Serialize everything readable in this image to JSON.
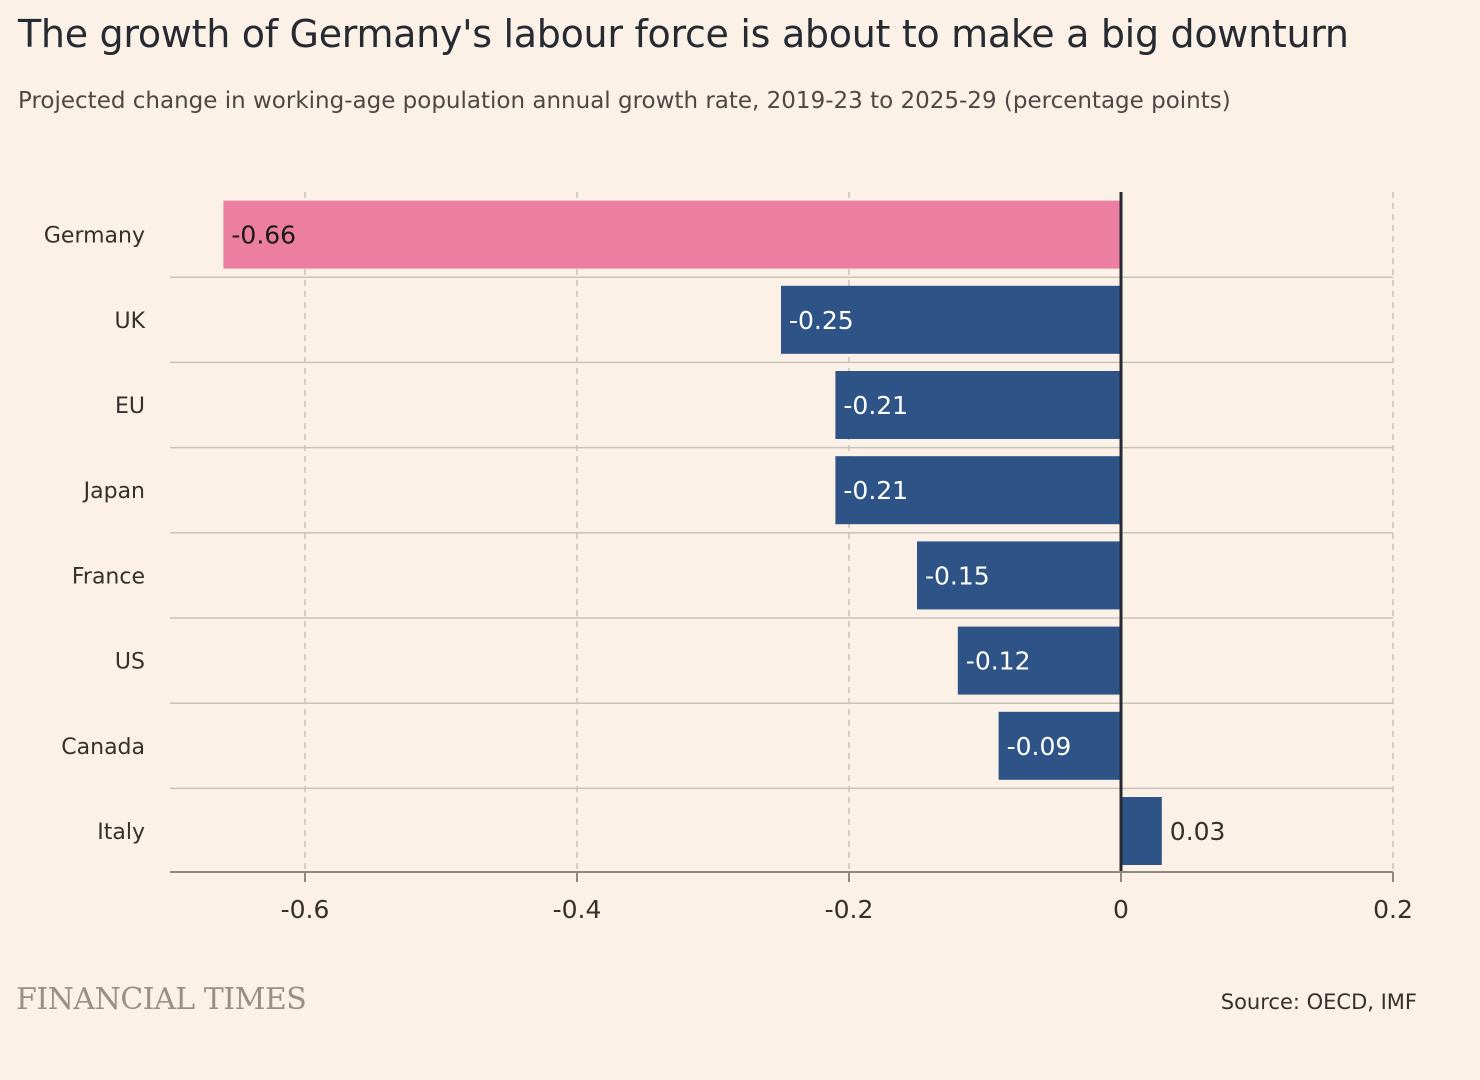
{
  "chart_data": {
    "type": "bar",
    "orientation": "horizontal",
    "title": "The growth of Germany's labour force is about to make a big downturn",
    "subtitle": "Projected change in working-age population annual growth rate, 2019-23 to 2025-29 (percentage points)",
    "categories": [
      "Germany",
      "UK",
      "EU",
      "Japan",
      "France",
      "US",
      "Canada",
      "Italy"
    ],
    "values": [
      -0.66,
      -0.25,
      -0.21,
      -0.21,
      -0.15,
      -0.12,
      -0.09,
      0.03
    ],
    "value_labels": [
      "-0.66",
      "-0.25",
      "-0.21",
      "-0.21",
      "-0.15",
      "-0.12",
      "-0.09",
      "0.03"
    ],
    "highlight_category": "Germany",
    "xlim": [
      -0.7,
      0.2
    ],
    "xticks": [
      -0.6,
      -0.4,
      -0.2,
      0,
      0.2
    ],
    "xtick_labels": [
      "-0.6",
      "-0.4",
      "-0.2",
      "0",
      "0.2"
    ],
    "grid": true,
    "colors": {
      "highlight": "#ec7ea2",
      "bar": "#2e5387",
      "background": "#fcf1e6",
      "grid": "#c9c2bb",
      "zero_line": "#262a33"
    }
  },
  "footer": {
    "brand": "FINANCIAL TIMES",
    "source": "Source: OECD, IMF"
  }
}
